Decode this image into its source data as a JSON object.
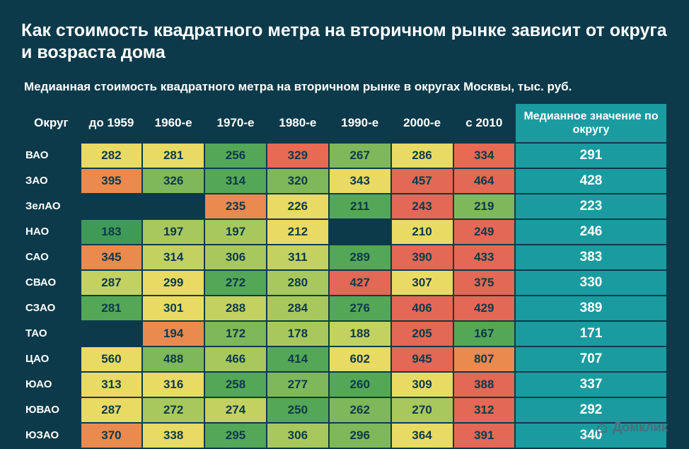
{
  "title": "Как стоимость квадратного метра на вторичном рынке зависит от округа и возраста дома",
  "subtitle": "Медианная стоимость квадратного метра на вторичном рынке в округах Москвы, тыс. руб.",
  "brand": "Домклик",
  "columns": {
    "district": "Округ",
    "decades": [
      "до 1959",
      "1960-е",
      "1970-е",
      "1980-е",
      "1990-е",
      "2000-е",
      "с 2010"
    ],
    "median": "Медианное значение по округу"
  },
  "heatmap_palette_note": "per-cell hex colors sampled from image; green=low within row, red=high",
  "rows": [
    {
      "label": "ВАО",
      "cells": [
        {
          "v": 282,
          "c": "#e9da63"
        },
        {
          "v": 281,
          "c": "#e9da63"
        },
        {
          "v": 256,
          "c": "#54a757"
        },
        {
          "v": 329,
          "c": "#e86a52"
        },
        {
          "v": 267,
          "c": "#7fb85a"
        },
        {
          "v": 286,
          "c": "#e9da63"
        },
        {
          "v": 334,
          "c": "#e86a52"
        }
      ],
      "median": 291
    },
    {
      "label": "ЗАО",
      "cells": [
        {
          "v": 395,
          "c": "#ea8a4f"
        },
        {
          "v": 326,
          "c": "#7fb85a"
        },
        {
          "v": 314,
          "c": "#54a757"
        },
        {
          "v": 320,
          "c": "#7fb85a"
        },
        {
          "v": 343,
          "c": "#e9da63"
        },
        {
          "v": 457,
          "c": "#e36855"
        },
        {
          "v": 464,
          "c": "#e36855"
        }
      ],
      "median": 428
    },
    {
      "label": "ЗелАО",
      "cells": [
        {
          "v": null,
          "c": null
        },
        {
          "v": null,
          "c": null
        },
        {
          "v": 235,
          "c": "#ea8a4f"
        },
        {
          "v": 226,
          "c": "#e9da63"
        },
        {
          "v": 211,
          "c": "#54a757"
        },
        {
          "v": 243,
          "c": "#e36855"
        },
        {
          "v": 219,
          "c": "#7fb85a"
        }
      ],
      "median": 223
    },
    {
      "label": "НАО",
      "cells": [
        {
          "v": 183,
          "c": "#3f9a57"
        },
        {
          "v": 197,
          "c": "#a8c85d"
        },
        {
          "v": 197,
          "c": "#a8c85d"
        },
        {
          "v": 212,
          "c": "#e9da63"
        },
        {
          "v": null,
          "c": null
        },
        {
          "v": 210,
          "c": "#e9da63"
        },
        {
          "v": 249,
          "c": "#e36855"
        }
      ],
      "median": 246
    },
    {
      "label": "САО",
      "cells": [
        {
          "v": 345,
          "c": "#ea8a4f"
        },
        {
          "v": 314,
          "c": "#c3d161"
        },
        {
          "v": 306,
          "c": "#a8c85d"
        },
        {
          "v": 311,
          "c": "#c3d161"
        },
        {
          "v": 289,
          "c": "#54a757"
        },
        {
          "v": 390,
          "c": "#e36855"
        },
        {
          "v": 433,
          "c": "#e36855"
        }
      ],
      "median": 383
    },
    {
      "label": "СВАО",
      "cells": [
        {
          "v": 287,
          "c": "#c3d161"
        },
        {
          "v": 299,
          "c": "#e9da63"
        },
        {
          "v": 272,
          "c": "#54a757"
        },
        {
          "v": 280,
          "c": "#a8c85d"
        },
        {
          "v": 427,
          "c": "#e36855"
        },
        {
          "v": 307,
          "c": "#e9da63"
        },
        {
          "v": 375,
          "c": "#e36855"
        }
      ],
      "median": 330
    },
    {
      "label": "СЗАО",
      "cells": [
        {
          "v": 281,
          "c": "#54a757"
        },
        {
          "v": 301,
          "c": "#e9da63"
        },
        {
          "v": 288,
          "c": "#c3d161"
        },
        {
          "v": 284,
          "c": "#a8c85d"
        },
        {
          "v": 276,
          "c": "#54a757"
        },
        {
          "v": 406,
          "c": "#e36855"
        },
        {
          "v": 429,
          "c": "#e36855"
        }
      ],
      "median": 389
    },
    {
      "label": "ТАО",
      "cells": [
        {
          "v": null,
          "c": null
        },
        {
          "v": 194,
          "c": "#ea8a4f"
        },
        {
          "v": 172,
          "c": "#7fb85a"
        },
        {
          "v": 178,
          "c": "#a8c85d"
        },
        {
          "v": 188,
          "c": "#c3d161"
        },
        {
          "v": 205,
          "c": "#e36855"
        },
        {
          "v": 167,
          "c": "#54a757"
        }
      ],
      "median": 171
    },
    {
      "label": "ЦАО",
      "cells": [
        {
          "v": 560,
          "c": "#e9da63"
        },
        {
          "v": 488,
          "c": "#7fb85a"
        },
        {
          "v": 466,
          "c": "#a8c85d"
        },
        {
          "v": 414,
          "c": "#54a757"
        },
        {
          "v": 602,
          "c": "#e9da63"
        },
        {
          "v": 945,
          "c": "#e36855"
        },
        {
          "v": 807,
          "c": "#ea8a4f"
        }
      ],
      "median": 707
    },
    {
      "label": "ЮАО",
      "cells": [
        {
          "v": 313,
          "c": "#e9da63"
        },
        {
          "v": 316,
          "c": "#e9da63"
        },
        {
          "v": 258,
          "c": "#54a757"
        },
        {
          "v": 277,
          "c": "#7fb85a"
        },
        {
          "v": 260,
          "c": "#54a757"
        },
        {
          "v": 309,
          "c": "#e9da63"
        },
        {
          "v": 388,
          "c": "#e36855"
        }
      ],
      "median": 337
    },
    {
      "label": "ЮВАО",
      "cells": [
        {
          "v": 287,
          "c": "#e9da63"
        },
        {
          "v": 272,
          "c": "#a8c85d"
        },
        {
          "v": 274,
          "c": "#c3d161"
        },
        {
          "v": 250,
          "c": "#54a757"
        },
        {
          "v": 262,
          "c": "#7fb85a"
        },
        {
          "v": 270,
          "c": "#a8c85d"
        },
        {
          "v": 312,
          "c": "#e36855"
        }
      ],
      "median": 292
    },
    {
      "label": "ЮЗАО",
      "cells": [
        {
          "v": 370,
          "c": "#ea8a4f"
        },
        {
          "v": 338,
          "c": "#e9da63"
        },
        {
          "v": 295,
          "c": "#54a757"
        },
        {
          "v": 306,
          "c": "#a8c85d"
        },
        {
          "v": 296,
          "c": "#7fb85a"
        },
        {
          "v": 364,
          "c": "#e9da63"
        },
        {
          "v": 391,
          "c": "#e36855"
        }
      ],
      "median": 340
    }
  ],
  "style": {
    "background_color": "#0c3a4a",
    "median_col_color": "#1a9ba0",
    "text_color_header": "#ffffff",
    "text_color_cell": "#0c3a4a",
    "brand_color": "#4a6f7a",
    "title_fontsize": 25,
    "subtitle_fontsize": 17,
    "cell_fontsize": 17,
    "median_fontsize": 19
  }
}
